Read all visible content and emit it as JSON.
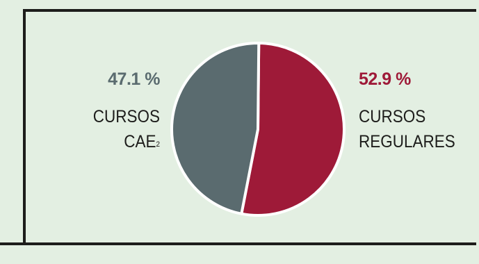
{
  "chart_data": {
    "type": "pie",
    "slices": [
      {
        "label_lines": [
          "CURSOS",
          "REGULARES"
        ],
        "value": 52.9,
        "value_label": "52.9 %",
        "color": "#9e1a38"
      },
      {
        "label_lines": [
          "CURSOS",
          "CAE"
        ],
        "footnote": "2",
        "value": 47.1,
        "value_label": "47.1 %",
        "color": "#5a6b6f"
      }
    ],
    "slice_border_color": "#ffffff",
    "background_color": "#e3efe2",
    "frame_color": "#1d1d1b"
  }
}
